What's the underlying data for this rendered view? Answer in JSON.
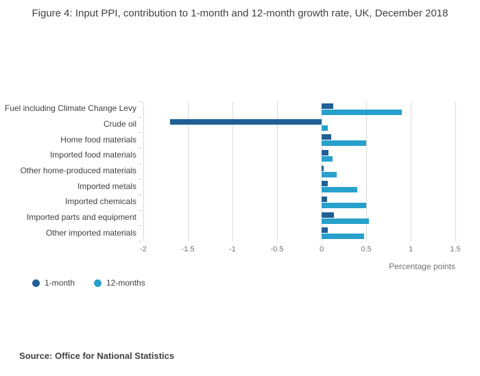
{
  "title": "Figure 4: Input PPI, contribution to 1-month and 12-month growth rate, UK, December 2018",
  "source": "Source: Office for National Statistics",
  "legend": {
    "items": [
      {
        "label": "1-month",
        "color": "#206095"
      },
      {
        "label": "12-months",
        "color": "#27a0cc"
      }
    ]
  },
  "chart_data": {
    "type": "bar",
    "orientation": "horizontal",
    "title": "Figure 4: Input PPI, contribution to 1-month and 12-month growth rate, UK, December 2018",
    "xlabel": "Percentage points",
    "ylabel": "",
    "categories": [
      "Fuel including Climate Change Levy",
      "Crude oil",
      "Home food materials",
      "Imported food materials",
      "Other home-produced materials",
      "Imported metals",
      "Imported chemicals",
      "Imported parts and equipment",
      "Other imported materials"
    ],
    "series": [
      {
        "name": "1-month",
        "color": "#206095",
        "values": [
          0.13,
          -1.7,
          0.11,
          0.08,
          0.02,
          0.07,
          0.06,
          0.14,
          0.07
        ]
      },
      {
        "name": "12-months",
        "color": "#27a0cc",
        "values": [
          0.9,
          0.07,
          0.5,
          0.12,
          0.17,
          0.4,
          0.5,
          0.53,
          0.48
        ]
      }
    ],
    "xlim": [
      -2,
      1.5
    ],
    "xticks": [
      -2,
      -1.5,
      -1,
      -0.5,
      0,
      0.5,
      1,
      1.5
    ],
    "grid": true,
    "legend_position": "bottom-left"
  }
}
